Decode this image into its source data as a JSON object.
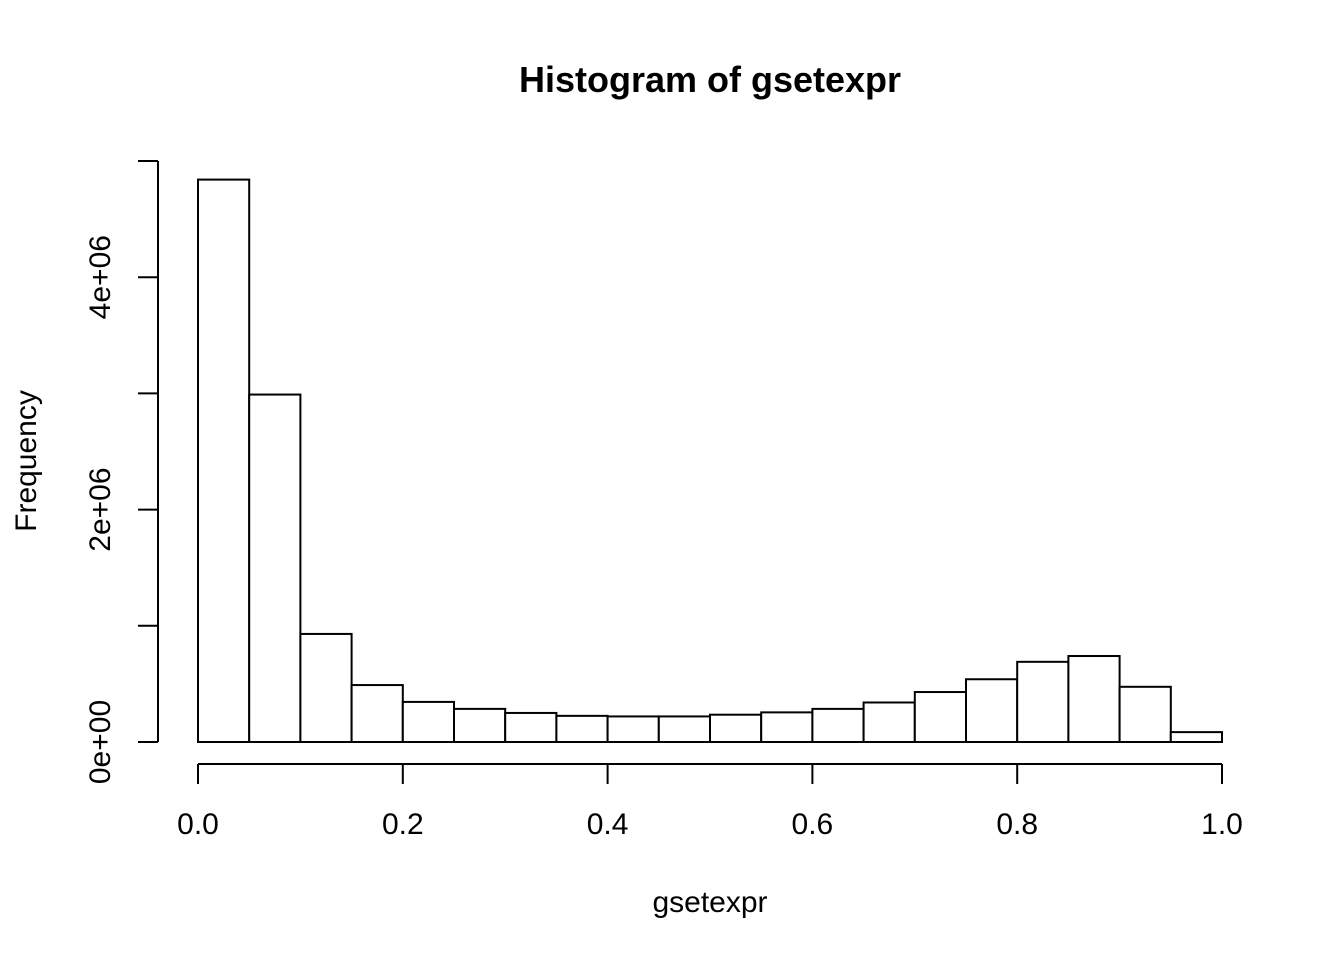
{
  "chart_data": {
    "type": "bar",
    "title": "Histogram of gsetexpr",
    "xlabel": "gsetexpr",
    "ylabel": "Frequency",
    "bin_edges": [
      0.0,
      0.05,
      0.1,
      0.15,
      0.2,
      0.25,
      0.3,
      0.35,
      0.4,
      0.45,
      0.5,
      0.55,
      0.6,
      0.65,
      0.7,
      0.75,
      0.8,
      0.85,
      0.9,
      0.95,
      1.0
    ],
    "values": [
      4840000,
      2990000,
      930000,
      490000,
      345000,
      285000,
      250000,
      225000,
      220000,
      220000,
      235000,
      255000,
      285000,
      340000,
      430000,
      540000,
      690000,
      740000,
      475000,
      85000
    ],
    "xlim": [
      0.0,
      1.0
    ],
    "ylim": [
      0,
      5000000
    ],
    "x_ticks": [
      0.0,
      0.2,
      0.4,
      0.6,
      0.8,
      1.0
    ],
    "x_tick_labels": [
      "0.0",
      "0.2",
      "0.4",
      "0.6",
      "0.8",
      "1.0"
    ],
    "y_ticks": [
      0,
      1000000,
      2000000,
      3000000,
      4000000,
      5000000
    ],
    "y_tick_labels": [
      "0e+00",
      "",
      "2e+06",
      "",
      "4e+06",
      ""
    ],
    "grid": false,
    "colors": {
      "bar_fill": "#ffffff",
      "bar_stroke": "#000000"
    }
  }
}
